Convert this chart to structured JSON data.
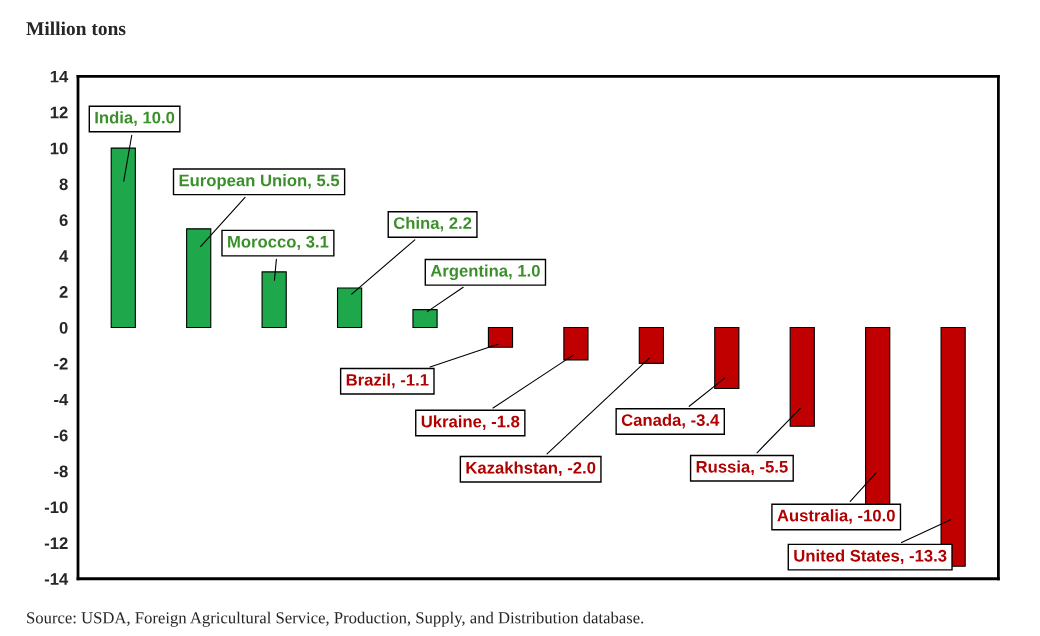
{
  "chart_data": {
    "type": "bar",
    "ylabel": "Million tons",
    "categories": [
      null,
      null,
      null,
      null,
      null,
      null,
      null,
      null,
      null,
      null,
      null,
      null
    ],
    "values": [
      10.0,
      5.5,
      3.1,
      2.2,
      1.0,
      -1.1,
      -1.8,
      -2.0,
      -3.4,
      -5.5,
      -10.0,
      -13.3
    ],
    "colors": [
      "#1ea84b",
      "#1ea84b",
      "#1ea84b",
      "#1ea84b",
      "#1ea84b",
      "#c00000",
      "#c00000",
      "#c00000",
      "#c00000",
      "#c00000",
      "#c00000",
      "#c00000"
    ],
    "value_labels": [
      "India, 10.0",
      "European Union, 5.5",
      "Morocco, 3.1",
      "China, 2.2",
      "Argentina, 1.0",
      "Brazil, -1.1",
      "Ukraine, -1.8",
      "Kazakhstan, -2.0",
      "Canada, -3.4",
      "Russia, -5.5",
      "Australia, -10.0",
      "United States, -13.3"
    ],
    "ylim": [
      -14,
      14
    ],
    "yticks": [
      -14,
      -12,
      -10,
      -8,
      -6,
      -4,
      -2,
      0,
      2,
      4,
      6,
      8,
      10,
      12,
      14
    ],
    "grid": false,
    "legend": false,
    "annotations": [
      "Source: USDA, Foreign Agricultural Service, Production, Supply, and Distribution database."
    ]
  }
}
